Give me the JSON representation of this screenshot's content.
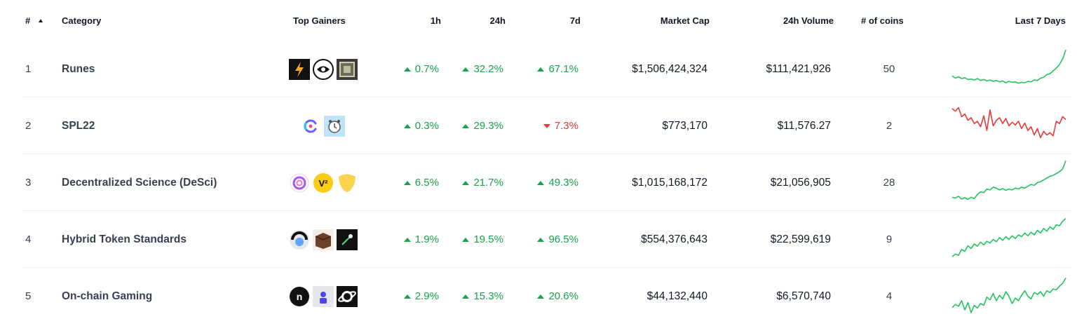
{
  "header": {
    "rank": "#",
    "category": "Category",
    "top_gainers": "Top Gainers",
    "h1": "1h",
    "h24": "24h",
    "d7": "7d",
    "market_cap": "Market Cap",
    "volume": "24h Volume",
    "coins": "# of coins",
    "last7": "Last 7 Days",
    "sort_icon": "sort-ascending-icon"
  },
  "rows": [
    {
      "rank": "1",
      "category": "Runes",
      "gainers": [
        "lightning-coin-icon",
        "eye-coin-icon",
        "pixel-coin-icon"
      ],
      "h1": "0.7%",
      "h1_dir": "up",
      "h24": "32.2%",
      "h24_dir": "up",
      "d7": "67.1%",
      "d7_dir": "up",
      "market_cap": "$1,506,424,324",
      "volume": "$111,421,926",
      "coins": "50",
      "spark_color": "#22c55e",
      "spark": [
        0.35,
        0.3,
        0.33,
        0.29,
        0.31,
        0.27,
        0.28,
        0.26,
        0.29,
        0.25,
        0.27,
        0.24,
        0.26,
        0.23,
        0.25,
        0.22,
        0.24,
        0.2,
        0.23,
        0.21,
        0.22,
        0.19,
        0.21,
        0.2,
        0.23,
        0.22,
        0.26,
        0.25,
        0.3,
        0.32,
        0.38,
        0.4,
        0.46,
        0.52,
        0.6,
        0.72,
        0.92
      ]
    },
    {
      "rank": "2",
      "category": "SPL22",
      "gainers": [
        "sync-coin-icon",
        "clock-coin-icon"
      ],
      "h1": "0.3%",
      "h1_dir": "up",
      "h24": "29.3%",
      "h24_dir": "up",
      "d7": "7.3%",
      "d7_dir": "down",
      "market_cap": "$773,170",
      "volume": "$11,576.27",
      "coins": "2",
      "spark_color": "#e53935",
      "spark": [
        0.88,
        0.82,
        0.9,
        0.7,
        0.76,
        0.62,
        0.68,
        0.55,
        0.6,
        0.48,
        0.72,
        0.4,
        0.85,
        0.5,
        0.62,
        0.68,
        0.55,
        0.66,
        0.5,
        0.58,
        0.52,
        0.6,
        0.44,
        0.56,
        0.4,
        0.48,
        0.3,
        0.44,
        0.24,
        0.38,
        0.3,
        0.35,
        0.28,
        0.6,
        0.55,
        0.7,
        0.64
      ]
    },
    {
      "rank": "3",
      "category": "Decentralized Science (DeSci)",
      "gainers": [
        "ring-coin-icon",
        "v-coin-icon",
        "shield-coin-icon"
      ],
      "h1": "6.5%",
      "h1_dir": "up",
      "h24": "21.7%",
      "h24_dir": "up",
      "d7": "49.3%",
      "d7_dir": "up",
      "market_cap": "$1,015,168,172",
      "volume": "$21,056,905",
      "coins": "28",
      "spark_color": "#22c55e",
      "spark": [
        0.18,
        0.16,
        0.2,
        0.14,
        0.17,
        0.13,
        0.18,
        0.15,
        0.24,
        0.3,
        0.28,
        0.36,
        0.34,
        0.4,
        0.38,
        0.34,
        0.37,
        0.33,
        0.36,
        0.34,
        0.38,
        0.36,
        0.4,
        0.38,
        0.42,
        0.46,
        0.44,
        0.5,
        0.52,
        0.56,
        0.6,
        0.64,
        0.66,
        0.7,
        0.74,
        0.8,
        0.98
      ]
    },
    {
      "rank": "4",
      "category": "Hybrid Token Standards",
      "gainers": [
        "robot-coin-icon",
        "box-coin-icon",
        "dark-coin-icon"
      ],
      "h1": "1.9%",
      "h1_dir": "up",
      "h24": "19.5%",
      "h24_dir": "up",
      "d7": "96.5%",
      "d7_dir": "up",
      "market_cap": "$554,376,643",
      "volume": "$22,599,619",
      "coins": "9",
      "spark_color": "#22c55e",
      "spark": [
        0.12,
        0.18,
        0.15,
        0.28,
        0.24,
        0.36,
        0.3,
        0.4,
        0.35,
        0.44,
        0.38,
        0.46,
        0.42,
        0.5,
        0.45,
        0.54,
        0.48,
        0.56,
        0.5,
        0.58,
        0.52,
        0.6,
        0.56,
        0.64,
        0.58,
        0.66,
        0.6,
        0.7,
        0.64,
        0.74,
        0.68,
        0.78,
        0.72,
        0.82,
        0.8,
        0.9,
        0.96
      ]
    },
    {
      "rank": "5",
      "category": "On-chain Gaming",
      "gainers": [
        "n-coin-icon",
        "character-coin-icon",
        "planet-coin-icon"
      ],
      "h1": "2.9%",
      "h1_dir": "up",
      "h24": "15.3%",
      "h24_dir": "up",
      "d7": "20.6%",
      "d7_dir": "up",
      "market_cap": "$44,132,440",
      "volume": "$6,570,740",
      "coins": "4",
      "spark_color": "#22c55e",
      "spark": [
        0.25,
        0.32,
        0.28,
        0.4,
        0.2,
        0.36,
        0.14,
        0.3,
        0.24,
        0.34,
        0.3,
        0.48,
        0.42,
        0.56,
        0.4,
        0.52,
        0.44,
        0.6,
        0.5,
        0.34,
        0.46,
        0.4,
        0.52,
        0.62,
        0.5,
        0.44,
        0.58,
        0.54,
        0.6,
        0.5,
        0.62,
        0.58,
        0.66,
        0.64,
        0.72,
        0.78,
        0.9
      ]
    }
  ]
}
